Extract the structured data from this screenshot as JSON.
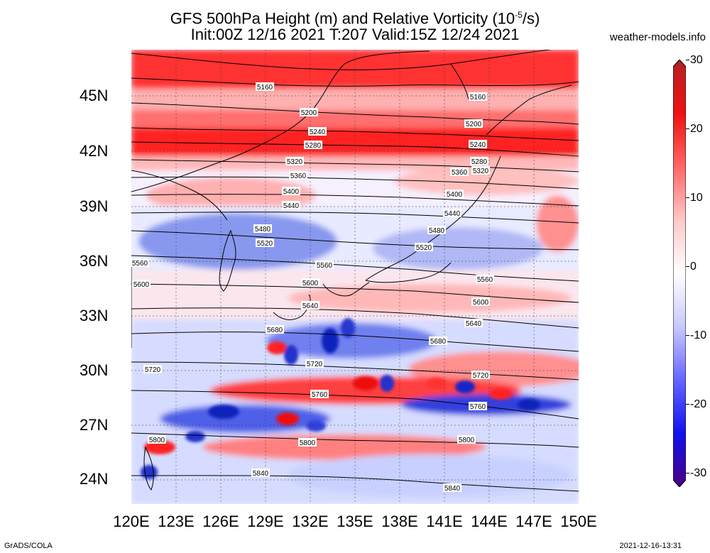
{
  "title_line1": "GFS 500hPa Height (m) and Relative Vorticity (10",
  "title_exp": "-5",
  "title_line1_end": "/s)",
  "title_line2": "Init:00Z 12/16 2021 T:207 Valid:15Z 12/24 2021",
  "credit": "weather-models.info",
  "footer_left": "GrADS/COLA",
  "footer_right": "2021-12-16-13:31",
  "lat_ticks": [
    "45N",
    "42N",
    "39N",
    "36N",
    "33N",
    "30N",
    "27N",
    "24N"
  ],
  "lon_ticks": [
    "120E",
    "123E",
    "126E",
    "129E",
    "132E",
    "135E",
    "138E",
    "141E",
    "144E",
    "147E",
    "150E"
  ],
  "colorbar": {
    "ticks": [
      "30",
      "20",
      "10",
      "0",
      "-10",
      "-20",
      "-30"
    ],
    "colors": [
      "#b22222",
      "#ee1111",
      "#ff6666",
      "#ffc8c8",
      "#ffffff",
      "#c8c8ff",
      "#6666ff",
      "#1111ee",
      "#4b0082"
    ]
  },
  "contours": [
    "5160",
    "5200",
    "5240",
    "5280",
    "5320",
    "5360",
    "5400",
    "5440",
    "5480",
    "5520",
    "5560",
    "5600",
    "5640",
    "5680",
    "5720",
    "5760",
    "5800",
    "5840"
  ]
}
